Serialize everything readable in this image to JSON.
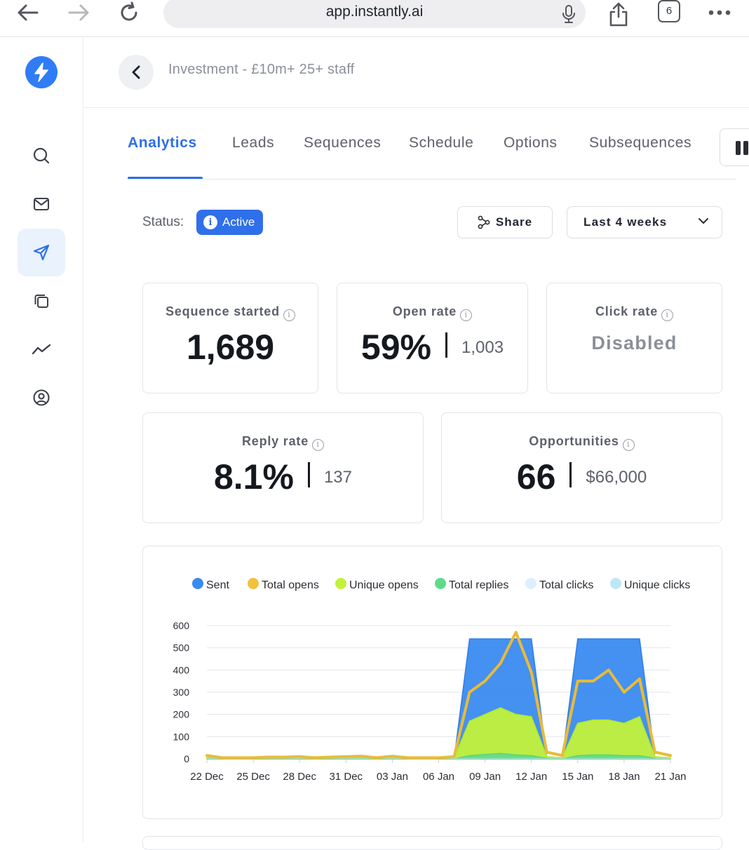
{
  "browser": {
    "url": "app.instantly.ai",
    "tab_count": "6"
  },
  "header": {
    "campaign_title": "Investment - £10m+ 25+ staff"
  },
  "tabs": [
    {
      "label": "Analytics",
      "active": true
    },
    {
      "label": "Leads"
    },
    {
      "label": "Sequences"
    },
    {
      "label": "Schedule"
    },
    {
      "label": "Options"
    },
    {
      "label": "Subsequences"
    }
  ],
  "status": {
    "label": "Status:",
    "badge": "Active",
    "share_label": "Share",
    "range_label": "Last 4 weeks"
  },
  "cards": {
    "sequence_started": {
      "title": "Sequence started",
      "value": "1,689"
    },
    "open_rate": {
      "title": "Open rate",
      "value": "59%",
      "sub": "1,003"
    },
    "click_rate": {
      "title": "Click rate",
      "value": "Disabled"
    },
    "reply_rate": {
      "title": "Reply rate",
      "value": "8.1%",
      "sub": "137"
    },
    "opportunities": {
      "title": "Opportunities",
      "value": "66",
      "sub": "$66,000"
    }
  },
  "colors": {
    "accent": "#2c6fe8",
    "sent": "#3a8bf0",
    "total_opens": "#f2c13c",
    "unique_opens": "#c2f23a",
    "total_replies": "#5edb8a",
    "total_clicks": "#dcefff",
    "unique_clicks": "#bfe6f7"
  },
  "chart_data": {
    "type": "area",
    "x_tick_labels": [
      "22 Dec",
      "25 Dec",
      "28 Dec",
      "31 Dec",
      "03 Jan",
      "06 Jan",
      "09 Jan",
      "12 Jan",
      "15 Jan",
      "18 Jan",
      "21 Jan"
    ],
    "y_tick_labels": [
      "0",
      "100",
      "200",
      "300",
      "400",
      "500",
      "600"
    ],
    "ylim": [
      0,
      600
    ],
    "x": [
      "22 Dec",
      "23 Dec",
      "24 Dec",
      "25 Dec",
      "26 Dec",
      "27 Dec",
      "28 Dec",
      "29 Dec",
      "30 Dec",
      "31 Dec",
      "01 Jan",
      "02 Jan",
      "03 Jan",
      "04 Jan",
      "05 Jan",
      "06 Jan",
      "07 Jan",
      "08 Jan",
      "09 Jan",
      "10 Jan",
      "11 Jan",
      "12 Jan",
      "13 Jan",
      "14 Jan",
      "15 Jan",
      "16 Jan",
      "17 Jan",
      "18 Jan",
      "19 Jan",
      "20 Jan",
      "21 Jan"
    ],
    "series": [
      {
        "name": "Sent",
        "values": [
          0,
          0,
          0,
          0,
          0,
          0,
          0,
          0,
          0,
          0,
          0,
          0,
          0,
          0,
          0,
          0,
          0,
          540,
          540,
          540,
          540,
          540,
          0,
          0,
          540,
          540,
          540,
          540,
          540,
          0,
          0
        ]
      },
      {
        "name": "Total opens",
        "values": [
          15,
          5,
          5,
          5,
          8,
          8,
          10,
          5,
          8,
          10,
          12,
          5,
          12,
          5,
          5,
          5,
          10,
          300,
          350,
          430,
          570,
          390,
          30,
          15,
          350,
          350,
          400,
          300,
          360,
          30,
          15
        ]
      },
      {
        "name": "Unique opens",
        "values": [
          5,
          5,
          5,
          5,
          5,
          5,
          5,
          5,
          5,
          5,
          5,
          5,
          5,
          5,
          5,
          5,
          5,
          170,
          200,
          230,
          200,
          190,
          10,
          5,
          160,
          175,
          175,
          160,
          190,
          10,
          5
        ]
      },
      {
        "name": "Total replies",
        "values": [
          0,
          0,
          0,
          0,
          0,
          0,
          0,
          0,
          0,
          0,
          0,
          0,
          0,
          0,
          0,
          0,
          0,
          15,
          20,
          25,
          18,
          15,
          3,
          0,
          15,
          18,
          18,
          15,
          15,
          3,
          0
        ]
      },
      {
        "name": "Total clicks",
        "values": [
          0,
          0,
          0,
          0,
          0,
          0,
          0,
          0,
          0,
          0,
          0,
          0,
          0,
          0,
          0,
          0,
          0,
          0,
          0,
          0,
          0,
          0,
          0,
          0,
          0,
          0,
          0,
          0,
          0,
          0,
          0
        ]
      },
      {
        "name": "Unique clicks",
        "values": [
          0,
          0,
          0,
          0,
          0,
          0,
          0,
          0,
          0,
          0,
          0,
          0,
          0,
          0,
          0,
          0,
          0,
          0,
          0,
          0,
          0,
          0,
          0,
          0,
          0,
          0,
          0,
          0,
          0,
          0,
          0
        ]
      }
    ]
  }
}
